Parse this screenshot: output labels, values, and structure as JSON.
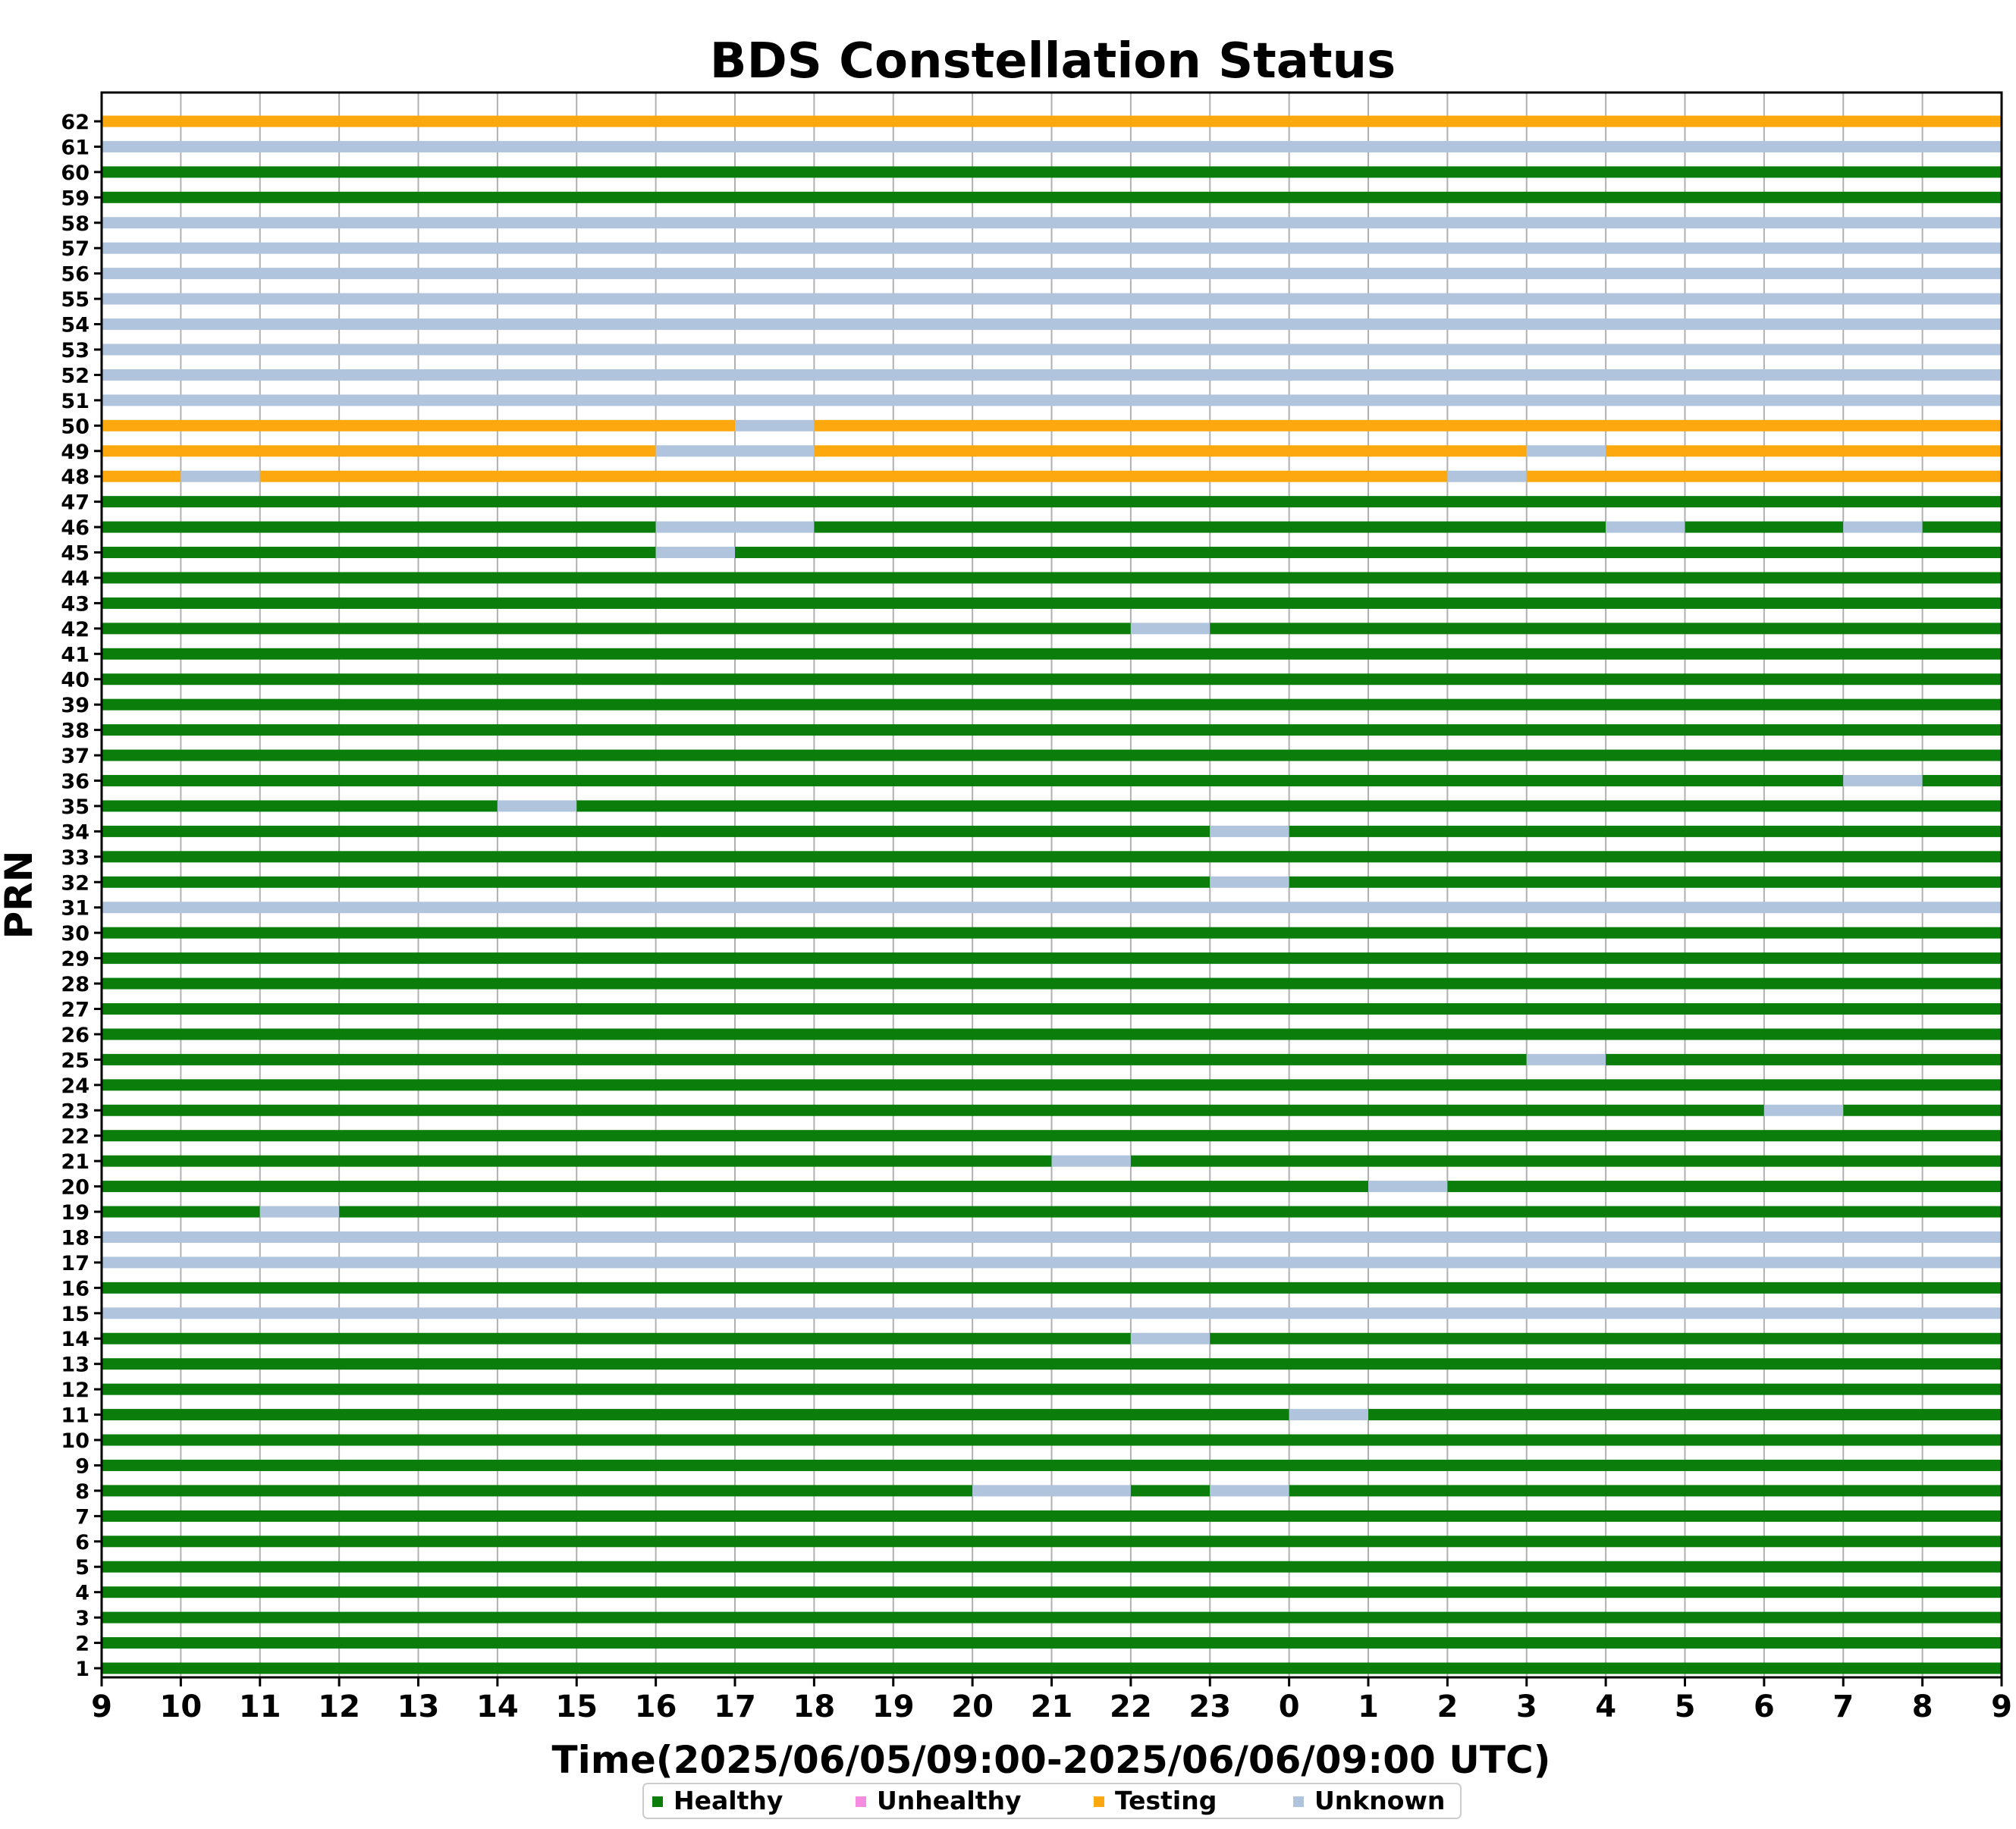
{
  "chart_data": {
    "type": "gantt",
    "title": "BDS Constellation Status",
    "xlabel": "Time(2025/06/05/09:00-2025/06/06/09:00 UTC)",
    "ylabel": "PRN",
    "xlim": [
      0,
      24
    ],
    "x_tick_labels": [
      "9",
      "10",
      "11",
      "12",
      "13",
      "14",
      "15",
      "16",
      "17",
      "18",
      "19",
      "20",
      "21",
      "22",
      "23",
      "0",
      "1",
      "2",
      "3",
      "4",
      "5",
      "6",
      "7",
      "8",
      "9"
    ],
    "prns": [
      1,
      2,
      3,
      4,
      5,
      6,
      7,
      8,
      9,
      10,
      11,
      12,
      13,
      14,
      15,
      16,
      17,
      18,
      19,
      20,
      21,
      22,
      23,
      24,
      25,
      26,
      27,
      28,
      29,
      30,
      31,
      32,
      33,
      34,
      35,
      36,
      37,
      38,
      39,
      40,
      41,
      42,
      43,
      44,
      45,
      46,
      47,
      48,
      49,
      50,
      51,
      52,
      53,
      54,
      55,
      56,
      57,
      58,
      59,
      60,
      61,
      62
    ],
    "grid": true,
    "legend_position": "bottom-center",
    "statuses": [
      {
        "name": "Healthy",
        "color": "#0a7d0a"
      },
      {
        "name": "Unhealthy",
        "color": "#f58ce0"
      },
      {
        "name": "Testing",
        "color": "#fca80e"
      },
      {
        "name": "Unknown",
        "color": "#b0c4de"
      }
    ],
    "default_status": "Healthy",
    "rows": {
      "8": [
        [
          "Healthy",
          0,
          11
        ],
        [
          "Unknown",
          11,
          13
        ],
        [
          "Healthy",
          13,
          14
        ],
        [
          "Unknown",
          14,
          15
        ],
        [
          "Healthy",
          15,
          24
        ]
      ],
      "11": [
        [
          "Healthy",
          0,
          15
        ],
        [
          "Unknown",
          15,
          16
        ],
        [
          "Healthy",
          16,
          24
        ]
      ],
      "14": [
        [
          "Healthy",
          0,
          13
        ],
        [
          "Unknown",
          13,
          14
        ],
        [
          "Healthy",
          14,
          24
        ]
      ],
      "15": [
        [
          "Unknown",
          0,
          24
        ]
      ],
      "17": [
        [
          "Unknown",
          0,
          24
        ]
      ],
      "18": [
        [
          "Unknown",
          0,
          24
        ]
      ],
      "19": [
        [
          "Healthy",
          0,
          2
        ],
        [
          "Unknown",
          2,
          3
        ],
        [
          "Healthy",
          3,
          24
        ]
      ],
      "20": [
        [
          "Healthy",
          0,
          16
        ],
        [
          "Unknown",
          16,
          17
        ],
        [
          "Healthy",
          17,
          24
        ]
      ],
      "21": [
        [
          "Healthy",
          0,
          12
        ],
        [
          "Unknown",
          12,
          13
        ],
        [
          "Healthy",
          13,
          24
        ]
      ],
      "23": [
        [
          "Healthy",
          0,
          21
        ],
        [
          "Unknown",
          21,
          22
        ],
        [
          "Healthy",
          22,
          24
        ]
      ],
      "25": [
        [
          "Healthy",
          0,
          18
        ],
        [
          "Unknown",
          18,
          19
        ],
        [
          "Healthy",
          19,
          24
        ]
      ],
      "31": [
        [
          "Unknown",
          0,
          24
        ]
      ],
      "32": [
        [
          "Healthy",
          0,
          14
        ],
        [
          "Unknown",
          14,
          15
        ],
        [
          "Healthy",
          15,
          24
        ]
      ],
      "34": [
        [
          "Healthy",
          0,
          14
        ],
        [
          "Unknown",
          14,
          15
        ],
        [
          "Healthy",
          15,
          24
        ]
      ],
      "35": [
        [
          "Healthy",
          0,
          5
        ],
        [
          "Unknown",
          5,
          6
        ],
        [
          "Healthy",
          6,
          24
        ]
      ],
      "36": [
        [
          "Healthy",
          0,
          22
        ],
        [
          "Unknown",
          22,
          23
        ],
        [
          "Healthy",
          23,
          24
        ]
      ],
      "42": [
        [
          "Healthy",
          0,
          13
        ],
        [
          "Unknown",
          13,
          14
        ],
        [
          "Healthy",
          14,
          24
        ]
      ],
      "45": [
        [
          "Healthy",
          0,
          7
        ],
        [
          "Unknown",
          7,
          8
        ],
        [
          "Healthy",
          8,
          24
        ]
      ],
      "46": [
        [
          "Healthy",
          0,
          7
        ],
        [
          "Unknown",
          7,
          9
        ],
        [
          "Healthy",
          9,
          19
        ],
        [
          "Unknown",
          19,
          20
        ],
        [
          "Healthy",
          20,
          22
        ],
        [
          "Unknown",
          22,
          23
        ],
        [
          "Healthy",
          23,
          24
        ]
      ],
      "48": [
        [
          "Testing",
          0,
          1
        ],
        [
          "Unknown",
          1,
          2
        ],
        [
          "Testing",
          2,
          17
        ],
        [
          "Unknown",
          17,
          18
        ],
        [
          "Testing",
          18,
          24
        ]
      ],
      "49": [
        [
          "Testing",
          0,
          7
        ],
        [
          "Unknown",
          7,
          9
        ],
        [
          "Testing",
          9,
          18
        ],
        [
          "Unknown",
          18,
          19
        ],
        [
          "Testing",
          19,
          24
        ]
      ],
      "50": [
        [
          "Testing",
          0,
          8
        ],
        [
          "Unknown",
          8,
          9
        ],
        [
          "Testing",
          9,
          24
        ]
      ],
      "51": [
        [
          "Unknown",
          0,
          24
        ]
      ],
      "52": [
        [
          "Unknown",
          0,
          24
        ]
      ],
      "53": [
        [
          "Unknown",
          0,
          24
        ]
      ],
      "54": [
        [
          "Unknown",
          0,
          24
        ]
      ],
      "55": [
        [
          "Unknown",
          0,
          24
        ]
      ],
      "56": [
        [
          "Unknown",
          0,
          24
        ]
      ],
      "57": [
        [
          "Unknown",
          0,
          24
        ]
      ],
      "58": [
        [
          "Unknown",
          0,
          24
        ]
      ],
      "61": [
        [
          "Unknown",
          0,
          24
        ]
      ],
      "62": [
        [
          "Testing",
          0,
          24
        ]
      ]
    }
  }
}
